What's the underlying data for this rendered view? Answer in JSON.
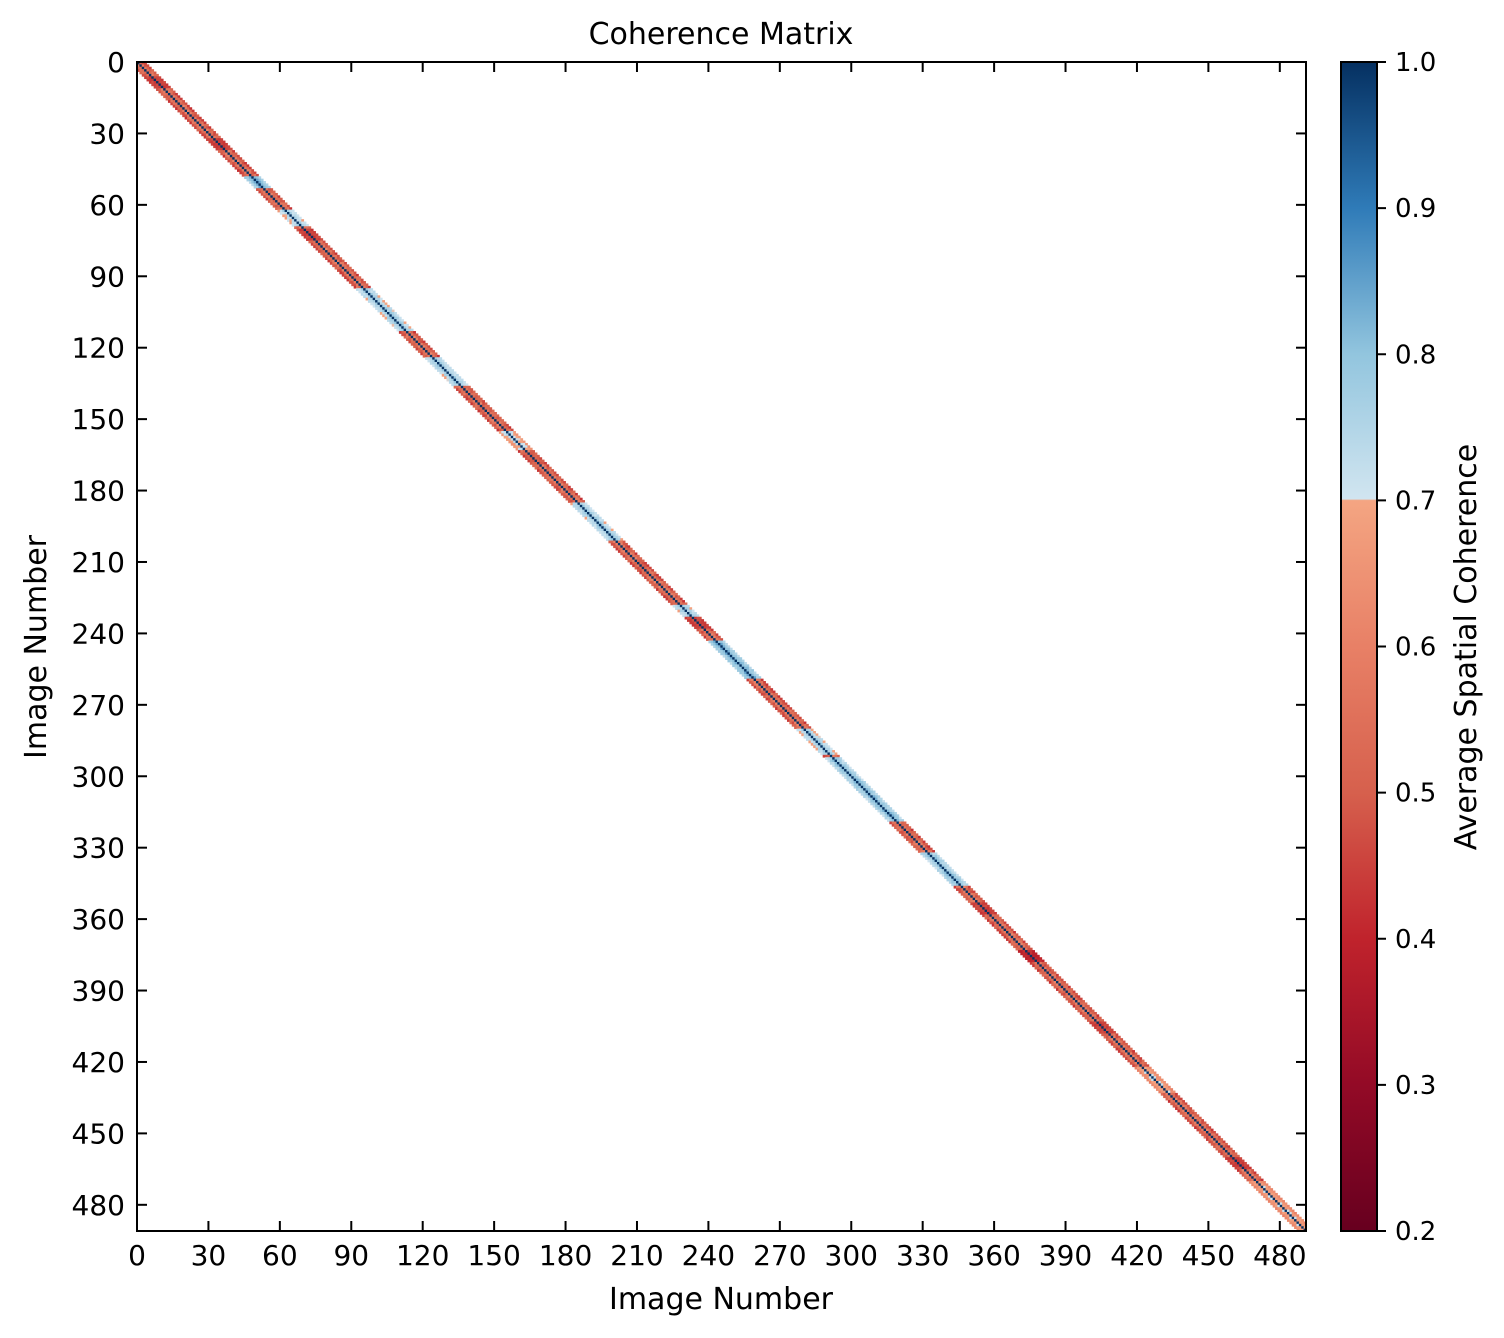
{
  "chart_data": {
    "type": "heatmap",
    "title": "Coherence Matrix",
    "xlabel": "Image Number",
    "ylabel": "Image Number",
    "matrix_size": 491,
    "xlim": [
      0,
      491
    ],
    "ylim": [
      491,
      0
    ],
    "x_ticks": [
      "0",
      "30",
      "60",
      "90",
      "120",
      "150",
      "180",
      "210",
      "240",
      "270",
      "300",
      "330",
      "360",
      "390",
      "420",
      "450",
      "480"
    ],
    "y_ticks": [
      "0",
      "30",
      "60",
      "90",
      "120",
      "150",
      "180",
      "210",
      "240",
      "270",
      "300",
      "330",
      "360",
      "390",
      "420",
      "450",
      "480"
    ],
    "band_half_width": 3,
    "diagonal_value": 1.0,
    "off_diagonal_baseline": 0.6,
    "high_coherence_segments": [
      {
        "start": 48,
        "end": 52,
        "value": 0.85
      },
      {
        "start": 62,
        "end": 68,
        "value": 0.78
      },
      {
        "start": 95,
        "end": 112,
        "value": 0.8
      },
      {
        "start": 124,
        "end": 135,
        "value": 0.8
      },
      {
        "start": 155,
        "end": 162,
        "value": 0.75
      },
      {
        "start": 185,
        "end": 200,
        "value": 0.8
      },
      {
        "start": 228,
        "end": 232,
        "value": 0.8
      },
      {
        "start": 243,
        "end": 258,
        "value": 0.85
      },
      {
        "start": 280,
        "end": 290,
        "value": 0.8
      },
      {
        "start": 292,
        "end": 300,
        "value": 0.82
      },
      {
        "start": 300,
        "end": 318,
        "value": 0.83
      },
      {
        "start": 332,
        "end": 345,
        "value": 0.82
      },
      {
        "start": 422,
        "end": 432,
        "value": 0.72
      },
      {
        "start": 470,
        "end": 491,
        "value": 0.72
      }
    ],
    "low_coherence_spots": [
      {
        "at": 8,
        "value": 0.45
      },
      {
        "at": 34,
        "value": 0.45
      },
      {
        "at": 72,
        "value": 0.45
      },
      {
        "at": 166,
        "value": 0.5
      },
      {
        "at": 235,
        "value": 0.45
      },
      {
        "at": 355,
        "value": 0.45
      },
      {
        "at": 375,
        "value": 0.4
      },
      {
        "at": 405,
        "value": 0.45
      },
      {
        "at": 462,
        "value": 0.45
      }
    ],
    "colorbar": {
      "label": "Average Spatial Coherence",
      "min": 0.2,
      "max": 1.0,
      "ticks": [
        "0.2",
        "0.3",
        "0.4",
        "0.5",
        "0.6",
        "0.7",
        "0.8",
        "0.9",
        "1.0"
      ],
      "colormap": "RdBu",
      "color_stops": [
        {
          "v": 0.2,
          "c": "#67001f"
        },
        {
          "v": 0.3,
          "c": "#930a26"
        },
        {
          "v": 0.4,
          "c": "#c0232c"
        },
        {
          "v": 0.5,
          "c": "#d6604d"
        },
        {
          "v": 0.6,
          "c": "#e88066"
        },
        {
          "v": 0.7,
          "c": "#f4a582"
        },
        {
          "v": 0.701,
          "c": "#d1e5f0"
        },
        {
          "v": 0.8,
          "c": "#92c5de"
        },
        {
          "v": 0.9,
          "c": "#2f7bb8"
        },
        {
          "v": 1.0,
          "c": "#053061"
        }
      ]
    }
  }
}
